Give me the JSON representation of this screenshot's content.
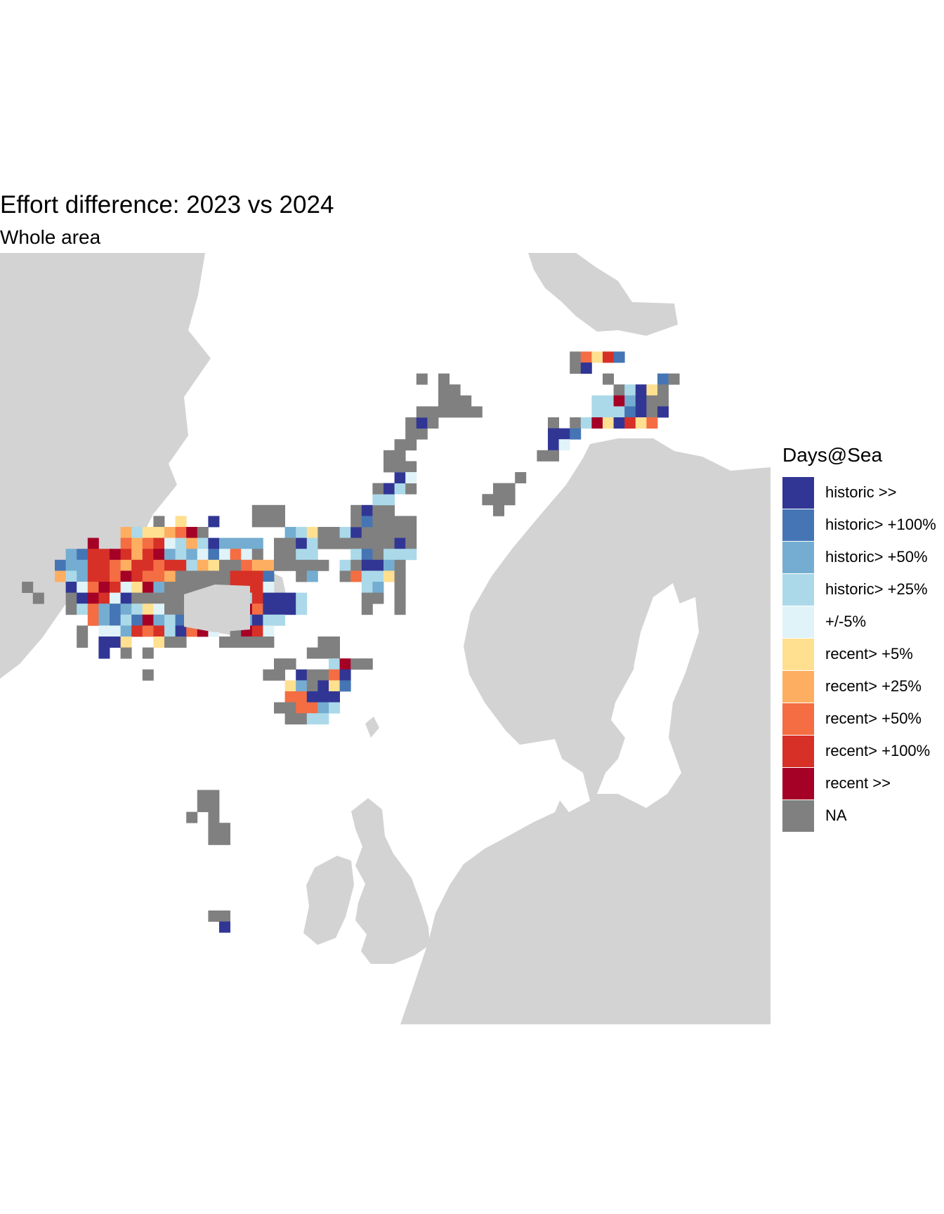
{
  "title": "Effort difference: 2023 vs 2024",
  "subtitle": "Whole area",
  "legend": {
    "title": "Days@Sea",
    "items": [
      {
        "label": "historic >>",
        "color": "#313695"
      },
      {
        "label": "historic> +100%",
        "color": "#4575b4"
      },
      {
        "label": "historic> +50%",
        "color": "#74add1"
      },
      {
        "label": "historic> +25%",
        "color": "#abd9e9"
      },
      {
        "label": "+/-5%",
        "color": "#e0f3f8"
      },
      {
        "label": "recent> +5%",
        "color": "#fee090"
      },
      {
        "label": "recent> +25%",
        "color": "#fdae61"
      },
      {
        "label": "recent> +50%",
        "color": "#f46d43"
      },
      {
        "label": "recent> +100%",
        "color": "#d73027"
      },
      {
        "label": "recent >>",
        "color": "#a50026"
      },
      {
        "label": "NA",
        "color": "#808080"
      }
    ]
  },
  "colors": {
    "land": "#d3d3d3",
    "sea": "#ffffff"
  }
}
